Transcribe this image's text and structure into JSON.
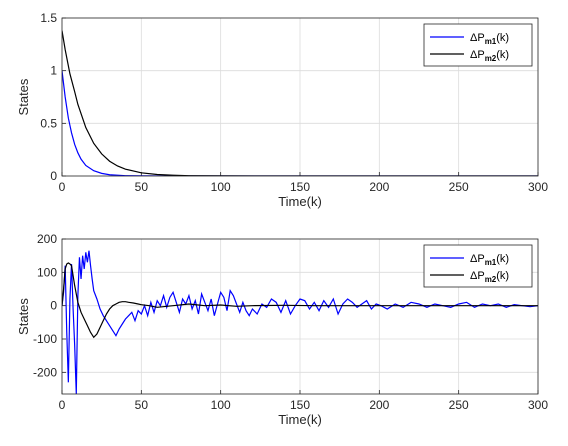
{
  "chart_data": [
    {
      "type": "line",
      "xlabel": "Time(k)",
      "ylabel": "States",
      "xlim": [
        0,
        300
      ],
      "ylim": [
        0,
        1.5
      ],
      "xticks": [
        "0",
        "50",
        "100",
        "150",
        "200",
        "250",
        "300"
      ],
      "yticks": [
        "0",
        "0.5",
        "1",
        "1.5"
      ],
      "grid": true,
      "legend_position": "top-right",
      "series": [
        {
          "name": "ΔPm1(k)",
          "legend": {
            "prefix": "ΔP",
            "sub": "m1",
            "suffix": "(k)"
          },
          "color": "#0000ff",
          "x": [
            0,
            2,
            4,
            6,
            8,
            10,
            12,
            15,
            20,
            25,
            30,
            40,
            50,
            70,
            100,
            150,
            200,
            250,
            300
          ],
          "y": [
            1.0,
            0.75,
            0.55,
            0.41,
            0.3,
            0.22,
            0.16,
            0.1,
            0.05,
            0.025,
            0.012,
            0.003,
            0.001,
            0,
            0,
            0,
            0,
            0,
            0
          ]
        },
        {
          "name": "ΔPm2(k)",
          "legend": {
            "prefix": "ΔP",
            "sub": "m2",
            "suffix": "(k)"
          },
          "color": "#000000",
          "x": [
            0,
            2,
            5,
            8,
            10,
            15,
            20,
            25,
            30,
            35,
            40,
            50,
            60,
            70,
            80,
            100,
            150,
            200,
            250,
            300
          ],
          "y": [
            1.38,
            1.2,
            0.97,
            0.8,
            0.68,
            0.46,
            0.31,
            0.21,
            0.14,
            0.095,
            0.065,
            0.03,
            0.014,
            0.007,
            0.003,
            0.001,
            0,
            0,
            0,
            0
          ]
        }
      ]
    },
    {
      "type": "line",
      "xlabel": "Time(k)",
      "ylabel": "States",
      "xlim": [
        0,
        300
      ],
      "ylim": [
        -265,
        200
      ],
      "xticks": [
        "0",
        "50",
        "100",
        "150",
        "200",
        "250",
        "300"
      ],
      "yticks": [
        "200",
        "100",
        "0",
        "-100",
        "-200"
      ],
      "ytick_values": [
        200,
        100,
        0,
        -100,
        -200
      ],
      "grid": true,
      "legend_position": "top-right",
      "series": [
        {
          "name": "ΔPm1(k)",
          "legend": {
            "prefix": "ΔP",
            "sub": "m1",
            "suffix": "(k)"
          },
          "color": "#0000ff",
          "x": [
            0,
            1,
            2,
            3,
            4,
            5,
            6,
            7,
            8,
            9,
            10,
            11,
            12,
            13,
            14,
            15,
            16,
            17,
            18,
            19,
            20,
            22,
            24,
            26,
            28,
            30,
            32,
            34,
            36,
            38,
            40,
            42,
            44,
            46,
            48,
            50,
            52,
            54,
            56,
            58,
            60,
            62,
            64,
            66,
            68,
            70,
            72,
            74,
            76,
            78,
            80,
            82,
            84,
            86,
            88,
            90,
            92,
            94,
            96,
            98,
            100,
            102,
            104,
            106,
            108,
            110,
            112,
            114,
            116,
            118,
            120,
            123,
            126,
            129,
            132,
            135,
            138,
            141,
            144,
            147,
            150,
            153,
            156,
            159,
            162,
            165,
            168,
            171,
            174,
            177,
            180,
            183,
            186,
            189,
            192,
            195,
            198,
            201,
            205,
            210,
            215,
            220,
            225,
            230,
            235,
            240,
            245,
            250,
            255,
            260,
            265,
            270,
            275,
            280,
            285,
            290,
            295,
            300
          ],
          "y": [
            0,
            40,
            120,
            -80,
            -230,
            20,
            125,
            -10,
            -120,
            -265,
            30,
            145,
            80,
            150,
            110,
            160,
            130,
            165,
            120,
            80,
            45,
            20,
            -10,
            -30,
            -45,
            -60,
            -75,
            -90,
            -70,
            -55,
            -40,
            -30,
            -20,
            -45,
            -15,
            -25,
            0,
            -30,
            10,
            -20,
            15,
            0,
            30,
            -5,
            25,
            40,
            10,
            -20,
            20,
            5,
            30,
            -10,
            15,
            -25,
            35,
            10,
            -15,
            20,
            -30,
            5,
            40,
            25,
            -15,
            45,
            30,
            5,
            -20,
            10,
            -15,
            -30,
            -10,
            -25,
            5,
            -5,
            20,
            10,
            -20,
            15,
            -25,
            0,
            20,
            15,
            -10,
            10,
            -15,
            15,
            -5,
            20,
            -25,
            5,
            20,
            10,
            -5,
            5,
            15,
            -10,
            5,
            0,
            -10,
            5,
            -5,
            10,
            5,
            -5,
            5,
            0,
            -5,
            5,
            10,
            -5,
            5,
            0,
            5,
            -5,
            3,
            0,
            -3,
            0
          ]
        },
        {
          "name": "ΔPm2(k)",
          "legend": {
            "prefix": "ΔP",
            "sub": "m2",
            "suffix": "(k)"
          },
          "color": "#000000",
          "x": [
            0,
            1,
            2,
            3,
            4,
            5,
            6,
            7,
            8,
            10,
            12,
            14,
            16,
            18,
            20,
            22,
            24,
            26,
            28,
            30,
            32,
            34,
            36,
            38,
            40,
            42,
            45,
            48,
            50,
            55,
            60,
            70,
            80,
            90,
            100,
            110,
            120,
            140,
            160,
            180,
            200,
            220,
            240,
            260,
            280,
            300
          ],
          "y": [
            0,
            50,
            110,
            125,
            128,
            125,
            120,
            90,
            60,
            10,
            -20,
            -40,
            -60,
            -80,
            -95,
            -85,
            -65,
            -45,
            -25,
            -10,
            0,
            5,
            10,
            12,
            12,
            10,
            8,
            5,
            3,
            0,
            -5,
            0,
            5,
            0,
            2,
            -2,
            0,
            1,
            0,
            0,
            0,
            0,
            0,
            0,
            0,
            0
          ]
        }
      ]
    }
  ]
}
